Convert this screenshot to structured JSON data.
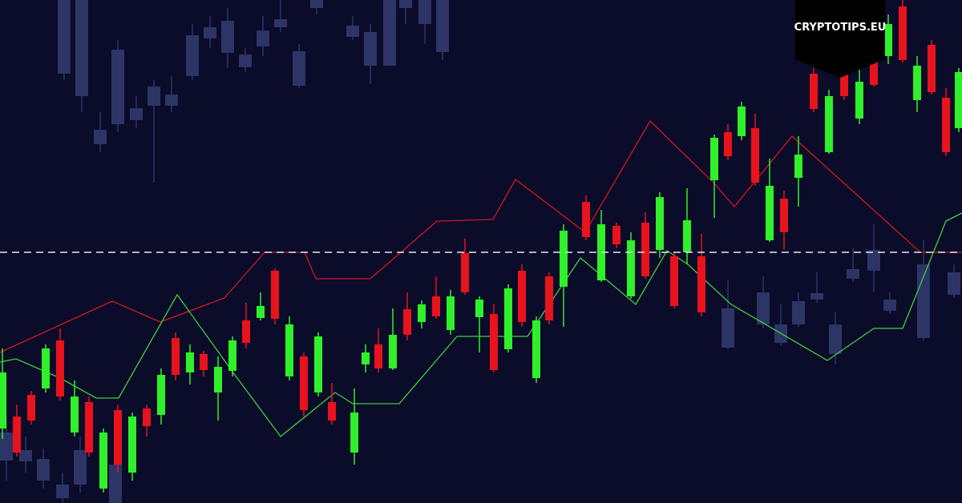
{
  "logo": {
    "text": "CRYPTOTIPS.EU"
  }
}
